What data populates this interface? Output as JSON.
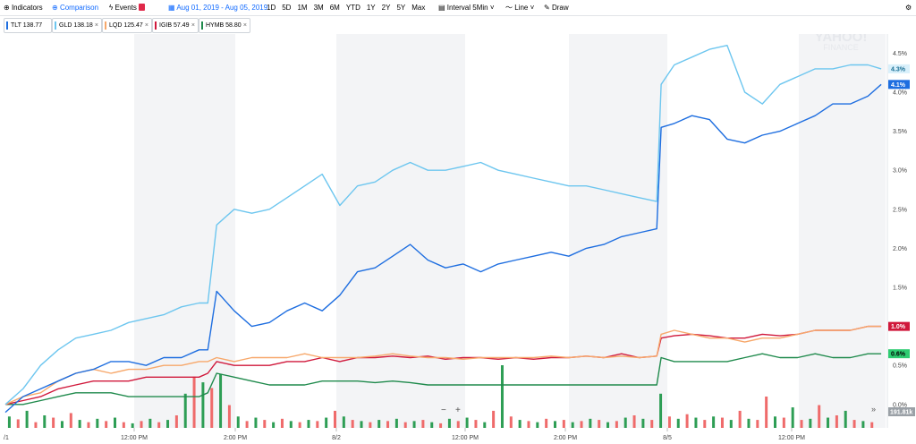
{
  "toolbar": {
    "indicators": "Indicators",
    "comparison": "Comparison",
    "events": "Events",
    "date_range": "Aug 01, 2019 - Aug 05, 2019",
    "ranges": [
      "1D",
      "5D",
      "1M",
      "3M",
      "6M",
      "YTD",
      "1Y",
      "2Y",
      "5Y",
      "Max"
    ],
    "interval": "Interval",
    "interval_value": "5Min",
    "chart_type": "Line",
    "draw": "Draw"
  },
  "comparison_chips": [
    {
      "label": "TLT 138.77",
      "color": "#1e6ee0",
      "removable": false
    },
    {
      "label": "GLD 138.18",
      "color": "#6dc6ef",
      "removable": true
    },
    {
      "label": "LQD 125.47",
      "color": "#f7a86b",
      "removable": true
    },
    {
      "label": "IGIB 57.49",
      "color": "#d0183b",
      "removable": true
    },
    {
      "label": "HYMB 58.80",
      "color": "#1f8a4c",
      "removable": true
    }
  ],
  "watermark": {
    "line1": "YAHOO!",
    "line2": "FINANCE"
  },
  "zoom_controls": {
    "minus": "−",
    "plus": "+"
  },
  "scroll_control": "»",
  "colors": {
    "TLT": "#1e6ee0",
    "GLD": "#6dc6ef",
    "LQD": "#f7a86b",
    "IGIB": "#d0183b",
    "HYMB": "#1f8a4c",
    "volume_up": "#2e9e55",
    "volume_down": "#ef6b6b"
  },
  "chart_data": {
    "type": "line",
    "title": "",
    "xlabel": "",
    "ylabel": "",
    "y_unit": "percent change",
    "ylim": [
      -0.3,
      4.7
    ],
    "y_ticks": [
      "4.5%",
      "4.0%",
      "3.5%",
      "3.0%",
      "2.5%",
      "2.0%",
      "1.5%",
      "1.0%",
      "0.5%",
      "0.0%"
    ],
    "y_tick_values": [
      4.5,
      4.0,
      3.5,
      3.0,
      2.5,
      2.0,
      1.5,
      1.0,
      0.5,
      0.0
    ],
    "x_tick_labels": [
      "/1",
      "12:00 PM",
      "2:00 PM",
      "8/2",
      "12:00 PM",
      "2:00 PM",
      "8/5",
      "12:00 PM"
    ],
    "grid": false,
    "shaded_afternoons": true,
    "series": [
      {
        "name": "TLT",
        "last_tag": "4.1%",
        "x": [
          0,
          20,
          40,
          60,
          80,
          100,
          120,
          140,
          160,
          180,
          200,
          220,
          230,
          240,
          260,
          280,
          300,
          320,
          340,
          360,
          380,
          400,
          420,
          440,
          460,
          480,
          500,
          520,
          540,
          560,
          580,
          600,
          620,
          640,
          660,
          680,
          700,
          720,
          740,
          745,
          760,
          780,
          800,
          820,
          840,
          860,
          880,
          900,
          920,
          940,
          960,
          980,
          995
        ],
        "values": [
          -0.1,
          0.1,
          0.2,
          0.3,
          0.4,
          0.45,
          0.55,
          0.55,
          0.5,
          0.6,
          0.6,
          0.7,
          0.7,
          1.45,
          1.2,
          1.0,
          1.05,
          1.2,
          1.3,
          1.2,
          1.4,
          1.7,
          1.75,
          1.9,
          2.05,
          1.85,
          1.75,
          1.8,
          1.7,
          1.8,
          1.85,
          1.9,
          1.95,
          1.9,
          2.0,
          2.05,
          2.15,
          2.2,
          2.25,
          3.55,
          3.6,
          3.7,
          3.65,
          3.4,
          3.35,
          3.45,
          3.5,
          3.6,
          3.7,
          3.85,
          3.85,
          3.95,
          4.1
        ]
      },
      {
        "name": "GLD",
        "last_tag": "4.3%",
        "x": [
          0,
          20,
          40,
          60,
          80,
          100,
          120,
          140,
          160,
          180,
          200,
          220,
          230,
          240,
          260,
          280,
          300,
          320,
          340,
          360,
          380,
          400,
          420,
          440,
          460,
          480,
          500,
          520,
          540,
          560,
          580,
          600,
          620,
          640,
          660,
          680,
          700,
          720,
          740,
          745,
          760,
          780,
          800,
          820,
          840,
          860,
          880,
          900,
          920,
          940,
          960,
          980,
          995
        ],
        "values": [
          0.0,
          0.2,
          0.5,
          0.7,
          0.85,
          0.9,
          0.95,
          1.05,
          1.1,
          1.15,
          1.25,
          1.3,
          1.3,
          2.3,
          2.5,
          2.45,
          2.5,
          2.65,
          2.8,
          2.95,
          2.55,
          2.8,
          2.85,
          3.0,
          3.1,
          3.0,
          3.0,
          3.05,
          3.1,
          3.0,
          2.95,
          2.9,
          2.85,
          2.8,
          2.8,
          2.75,
          2.7,
          2.65,
          2.6,
          4.1,
          4.35,
          4.45,
          4.55,
          4.6,
          4.0,
          3.85,
          4.1,
          4.2,
          4.3,
          4.3,
          4.35,
          4.35,
          4.3
        ]
      },
      {
        "name": "LQD",
        "last_tag": "1.0%",
        "x": [
          0,
          20,
          40,
          60,
          80,
          100,
          120,
          140,
          160,
          180,
          200,
          220,
          230,
          240,
          260,
          280,
          300,
          320,
          340,
          360,
          380,
          400,
          420,
          440,
          460,
          480,
          500,
          520,
          540,
          560,
          580,
          600,
          620,
          640,
          660,
          680,
          700,
          720,
          740,
          745,
          760,
          780,
          800,
          820,
          840,
          860,
          880,
          900,
          920,
          940,
          960,
          980,
          995
        ],
        "values": [
          0.0,
          0.1,
          0.15,
          0.3,
          0.4,
          0.45,
          0.4,
          0.45,
          0.45,
          0.5,
          0.5,
          0.55,
          0.55,
          0.6,
          0.55,
          0.6,
          0.6,
          0.6,
          0.65,
          0.6,
          0.6,
          0.6,
          0.62,
          0.65,
          0.62,
          0.6,
          0.6,
          0.58,
          0.6,
          0.6,
          0.6,
          0.6,
          0.62,
          0.6,
          0.62,
          0.6,
          0.62,
          0.6,
          0.62,
          0.9,
          0.95,
          0.9,
          0.85,
          0.85,
          0.8,
          0.85,
          0.85,
          0.9,
          0.95,
          0.95,
          0.95,
          1.0,
          1.0
        ]
      },
      {
        "name": "IGIB",
        "last_tag": "1.0%",
        "x": [
          0,
          20,
          40,
          60,
          80,
          100,
          120,
          140,
          160,
          180,
          200,
          220,
          230,
          240,
          260,
          280,
          300,
          320,
          340,
          360,
          380,
          400,
          420,
          440,
          460,
          480,
          500,
          520,
          540,
          560,
          580,
          600,
          620,
          640,
          660,
          680,
          700,
          720,
          740,
          745,
          760,
          780,
          800,
          820,
          840,
          860,
          880,
          900,
          920,
          940,
          960,
          980,
          995
        ],
        "values": [
          0.0,
          0.05,
          0.1,
          0.2,
          0.25,
          0.3,
          0.3,
          0.3,
          0.35,
          0.35,
          0.35,
          0.35,
          0.4,
          0.55,
          0.5,
          0.5,
          0.5,
          0.55,
          0.55,
          0.6,
          0.55,
          0.6,
          0.6,
          0.62,
          0.6,
          0.62,
          0.58,
          0.6,
          0.6,
          0.58,
          0.6,
          0.58,
          0.6,
          0.6,
          0.62,
          0.6,
          0.65,
          0.6,
          0.62,
          0.85,
          0.88,
          0.9,
          0.88,
          0.85,
          0.85,
          0.9,
          0.88,
          0.9,
          0.95,
          0.95,
          0.95,
          1.0,
          1.0
        ]
      },
      {
        "name": "HYMB",
        "last_tag": "0.6%",
        "x": [
          0,
          20,
          40,
          60,
          80,
          100,
          120,
          140,
          160,
          180,
          200,
          220,
          230,
          240,
          260,
          280,
          300,
          320,
          340,
          360,
          380,
          400,
          420,
          440,
          460,
          480,
          500,
          520,
          540,
          560,
          580,
          600,
          620,
          640,
          660,
          680,
          700,
          720,
          740,
          745,
          760,
          780,
          800,
          820,
          840,
          860,
          880,
          900,
          920,
          940,
          960,
          980,
          995
        ],
        "values": [
          0.0,
          0.0,
          0.05,
          0.1,
          0.15,
          0.15,
          0.15,
          0.1,
          0.1,
          0.1,
          0.1,
          0.1,
          0.15,
          0.4,
          0.35,
          0.3,
          0.25,
          0.25,
          0.25,
          0.3,
          0.3,
          0.3,
          0.28,
          0.3,
          0.28,
          0.25,
          0.25,
          0.25,
          0.25,
          0.25,
          0.25,
          0.25,
          0.25,
          0.25,
          0.25,
          0.25,
          0.25,
          0.25,
          0.25,
          0.6,
          0.55,
          0.55,
          0.55,
          0.55,
          0.6,
          0.65,
          0.6,
          0.6,
          0.65,
          0.6,
          0.6,
          0.65,
          0.65
        ]
      }
    ],
    "volume": {
      "x": [
        5,
        15,
        25,
        35,
        45,
        55,
        65,
        75,
        85,
        95,
        105,
        115,
        125,
        135,
        145,
        155,
        165,
        175,
        185,
        195,
        205,
        215,
        225,
        235,
        245,
        255,
        265,
        275,
        285,
        295,
        305,
        315,
        325,
        335,
        345,
        355,
        365,
        375,
        385,
        395,
        405,
        415,
        425,
        435,
        445,
        455,
        465,
        475,
        485,
        495,
        505,
        515,
        525,
        535,
        545,
        555,
        565,
        575,
        585,
        595,
        605,
        615,
        625,
        635,
        645,
        655,
        665,
        675,
        685,
        695,
        705,
        715,
        725,
        735,
        745,
        755,
        765,
        775,
        785,
        795,
        805,
        815,
        825,
        835,
        845,
        855,
        865,
        875,
        885,
        895,
        905,
        915,
        925,
        935,
        945,
        955,
        965,
        975,
        985
      ],
      "values": [
        20,
        15,
        30,
        10,
        22,
        18,
        12,
        26,
        14,
        10,
        16,
        12,
        18,
        10,
        8,
        12,
        16,
        10,
        14,
        22,
        60,
        90,
        80,
        70,
        95,
        40,
        20,
        12,
        18,
        14,
        10,
        16,
        12,
        10,
        14,
        12,
        18,
        30,
        20,
        14,
        12,
        10,
        14,
        12,
        16,
        10,
        12,
        14,
        10,
        8,
        16,
        12,
        18,
        14,
        10,
        30,
        110,
        20,
        14,
        12,
        10,
        16,
        12,
        14,
        10,
        12,
        16,
        14,
        10,
        12,
        18,
        22,
        16,
        14,
        60,
        20,
        16,
        24,
        18,
        14,
        20,
        18,
        14,
        30,
        16,
        14,
        55,
        20,
        18,
        36,
        14,
        16,
        40,
        18,
        22,
        30,
        14,
        12,
        10
      ],
      "up": [
        1,
        0,
        1,
        0,
        1,
        0,
        1,
        0,
        1,
        0,
        1,
        0,
        1,
        0,
        1,
        0,
        1,
        0,
        1,
        0,
        1,
        0,
        1,
        0,
        1,
        0,
        1,
        0,
        1,
        0,
        1,
        0,
        1,
        0,
        1,
        0,
        1,
        0,
        1,
        0,
        1,
        0,
        1,
        0,
        1,
        0,
        1,
        0,
        1,
        0,
        1,
        0,
        1,
        0,
        1,
        0,
        1,
        0,
        1,
        0,
        1,
        0,
        1,
        0,
        1,
        0,
        1,
        0,
        1,
        0,
        1,
        0,
        1,
        0,
        1,
        0,
        1,
        0,
        1,
        0,
        1,
        0,
        1,
        0,
        1,
        0,
        0,
        1,
        0,
        1,
        0,
        1,
        0,
        1,
        0,
        1,
        0,
        1,
        0
      ],
      "last_label": "191.81k"
    }
  }
}
